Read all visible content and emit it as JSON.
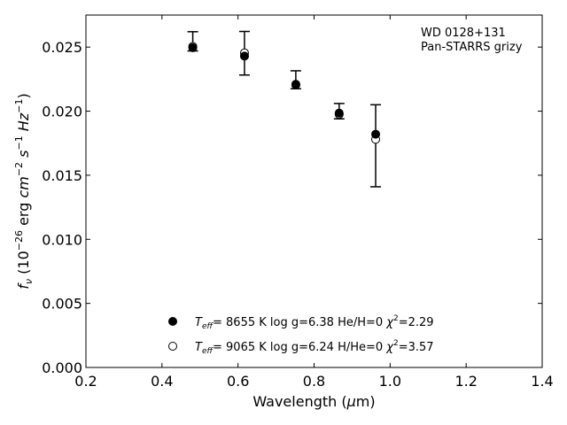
{
  "chart_data": {
    "type": "scatter",
    "xlabel_main": "Wavelength (",
    "xlabel_mu": "μ",
    "xlabel_unit": "m)",
    "ylabel": {
      "prefix": "f",
      "sub": "ν",
      "open": " (10",
      "exp1": "−26",
      "mid": " erg ",
      "cm": "cm",
      "exp2": "−2",
      "s": "s",
      "exp3": "−1",
      "hz": "Hz",
      "exp4": "−1",
      "close": ")"
    },
    "xlim": [
      0.2,
      1.4
    ],
    "ylim": [
      0.0,
      0.0275
    ],
    "xticks": [
      "0.2",
      "0.4",
      "0.6",
      "0.8",
      "1.0",
      "1.2",
      "1.4"
    ],
    "xtick_values": [
      0.2,
      0.4,
      0.6,
      0.8,
      1.0,
      1.2,
      1.4
    ],
    "yticks": [
      "0.000",
      "0.005",
      "0.010",
      "0.015",
      "0.020",
      "0.025"
    ],
    "ytick_values": [
      0.0,
      0.005,
      0.01,
      0.015,
      0.02,
      0.025
    ],
    "annotation": [
      "WD 0128+131",
      "Pan-STARRS grizy"
    ],
    "observed": {
      "x": [
        0.481,
        0.617,
        0.752,
        0.866,
        0.962
      ],
      "y": [
        0.02545,
        0.02452,
        0.02245,
        0.02,
        0.0173
      ],
      "yerr": [
        0.00075,
        0.0017,
        0.0007,
        0.0006,
        0.0032
      ]
    },
    "series": [
      {
        "marker": "filled-circle",
        "label": {
          "t": "T",
          "sub": "eff",
          "text": "=  8655 K  log g=6.38  He/H=0  ",
          "chi": "χ",
          "sup": "2",
          "val": "=2.29"
        },
        "x": [
          0.481,
          0.617,
          0.752,
          0.866,
          0.962
        ],
        "y": [
          0.02495,
          0.0243,
          0.0221,
          0.01985,
          0.0182
        ]
      },
      {
        "marker": "open-circle",
        "label": {
          "t": "T",
          "sub": "eff",
          "text": "=  9065 K  log g=6.24  H/He=0  ",
          "chi": "χ",
          "sup": "2",
          "val": "=3.57"
        },
        "x": [
          0.481,
          0.617,
          0.752,
          0.866,
          0.962
        ],
        "y": [
          0.02505,
          0.02455,
          0.02205,
          0.01975,
          0.0178
        ]
      }
    ]
  }
}
